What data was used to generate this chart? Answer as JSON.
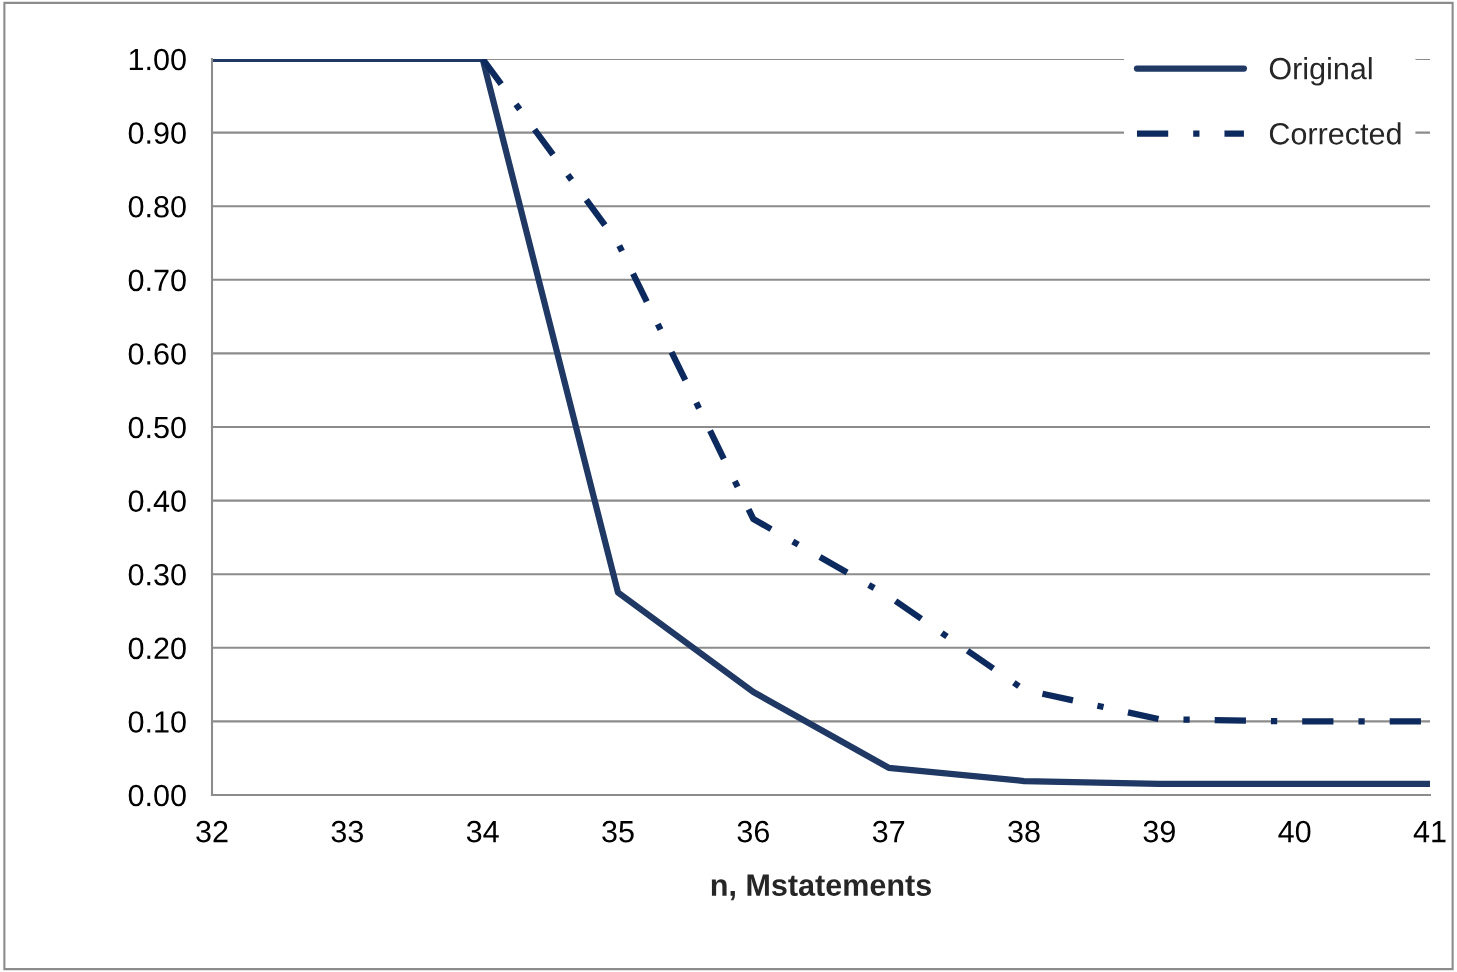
{
  "chart_data": {
    "type": "line",
    "xlabel": "n, Mstatements",
    "x": [
      32,
      33,
      34,
      35,
      36,
      37,
      38,
      39,
      40,
      41
    ],
    "series": [
      {
        "name": "Original",
        "color": "#1f3864",
        "line_style": "solid",
        "values": [
          1.0,
          1.0,
          1.0,
          0.275,
          0.14,
          0.037,
          0.019,
          0.015,
          0.015,
          0.015
        ]
      },
      {
        "name": "Corrected",
        "color": "#0d2a5e",
        "line_style": "dashdot",
        "x": [
          34,
          35,
          36,
          37,
          38,
          39,
          40,
          41
        ],
        "values": [
          1.0,
          0.75,
          0.375,
          0.27,
          0.143,
          0.103,
          0.1,
          0.1
        ]
      }
    ],
    "xlim": [
      32,
      41
    ],
    "xticks": [
      32,
      33,
      34,
      35,
      36,
      37,
      38,
      39,
      40,
      41
    ],
    "ylim": [
      0,
      1.0
    ],
    "yticks": [
      {
        "value": 0,
        "label": "0.00"
      },
      {
        "value": 0.1,
        "label": "0.10"
      },
      {
        "value": 0.2,
        "label": "0.20"
      },
      {
        "value": 0.3,
        "label": "0.30"
      },
      {
        "value": 0.4,
        "label": "0.40"
      },
      {
        "value": 0.5,
        "label": "0.50"
      },
      {
        "value": 0.6,
        "label": "0.60"
      },
      {
        "value": 0.7,
        "label": "0.70"
      },
      {
        "value": 0.8,
        "label": "0.80"
      },
      {
        "value": 0.9,
        "label": "0.90"
      },
      {
        "value": 1.0,
        "label": "1.00"
      }
    ],
    "grid": "y",
    "legend": "top right",
    "marker": "none"
  }
}
